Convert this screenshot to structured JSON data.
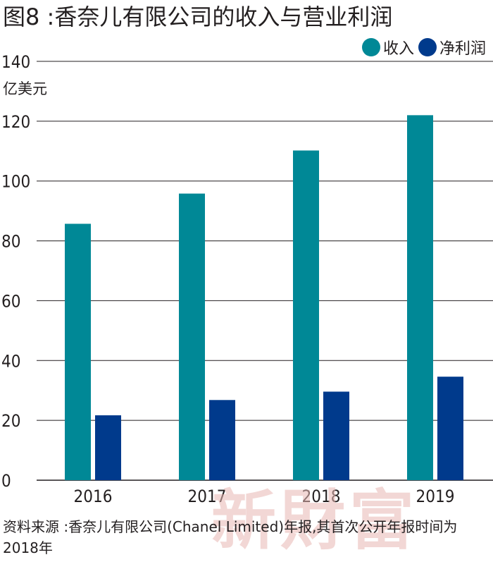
{
  "title": "图8 :香奈儿有限公司的收入与营业利润",
  "unit_label": "亿美元",
  "colors": {
    "revenue": "#008896",
    "net_profit": "#003a8c",
    "grid": "#231f20",
    "watermark": "#e8b8b4"
  },
  "legend": [
    {
      "label": "收入",
      "color": "#008896"
    },
    {
      "label": "净利润",
      "color": "#003a8c"
    }
  ],
  "footnote": "资料来源 :香奈儿有限公司(Chanel Limited)年报,其首次公开年报时间为2018年",
  "watermark": "新財富",
  "chart_data": {
    "type": "bar",
    "categories": [
      "2016",
      "2017",
      "2018",
      "2019"
    ],
    "series": [
      {
        "name": "收入",
        "values": [
          85.7,
          95.8,
          110.2,
          122.0
        ],
        "color": "#008896"
      },
      {
        "name": "净利润",
        "values": [
          21.7,
          26.8,
          29.6,
          34.6
        ],
        "color": "#003a8c"
      }
    ],
    "ylabel": "亿美元",
    "ylim": [
      0,
      140
    ],
    "yticks": [
      0,
      20,
      40,
      60,
      80,
      100,
      120,
      140
    ],
    "grid": true,
    "legend_position": "top-right"
  }
}
